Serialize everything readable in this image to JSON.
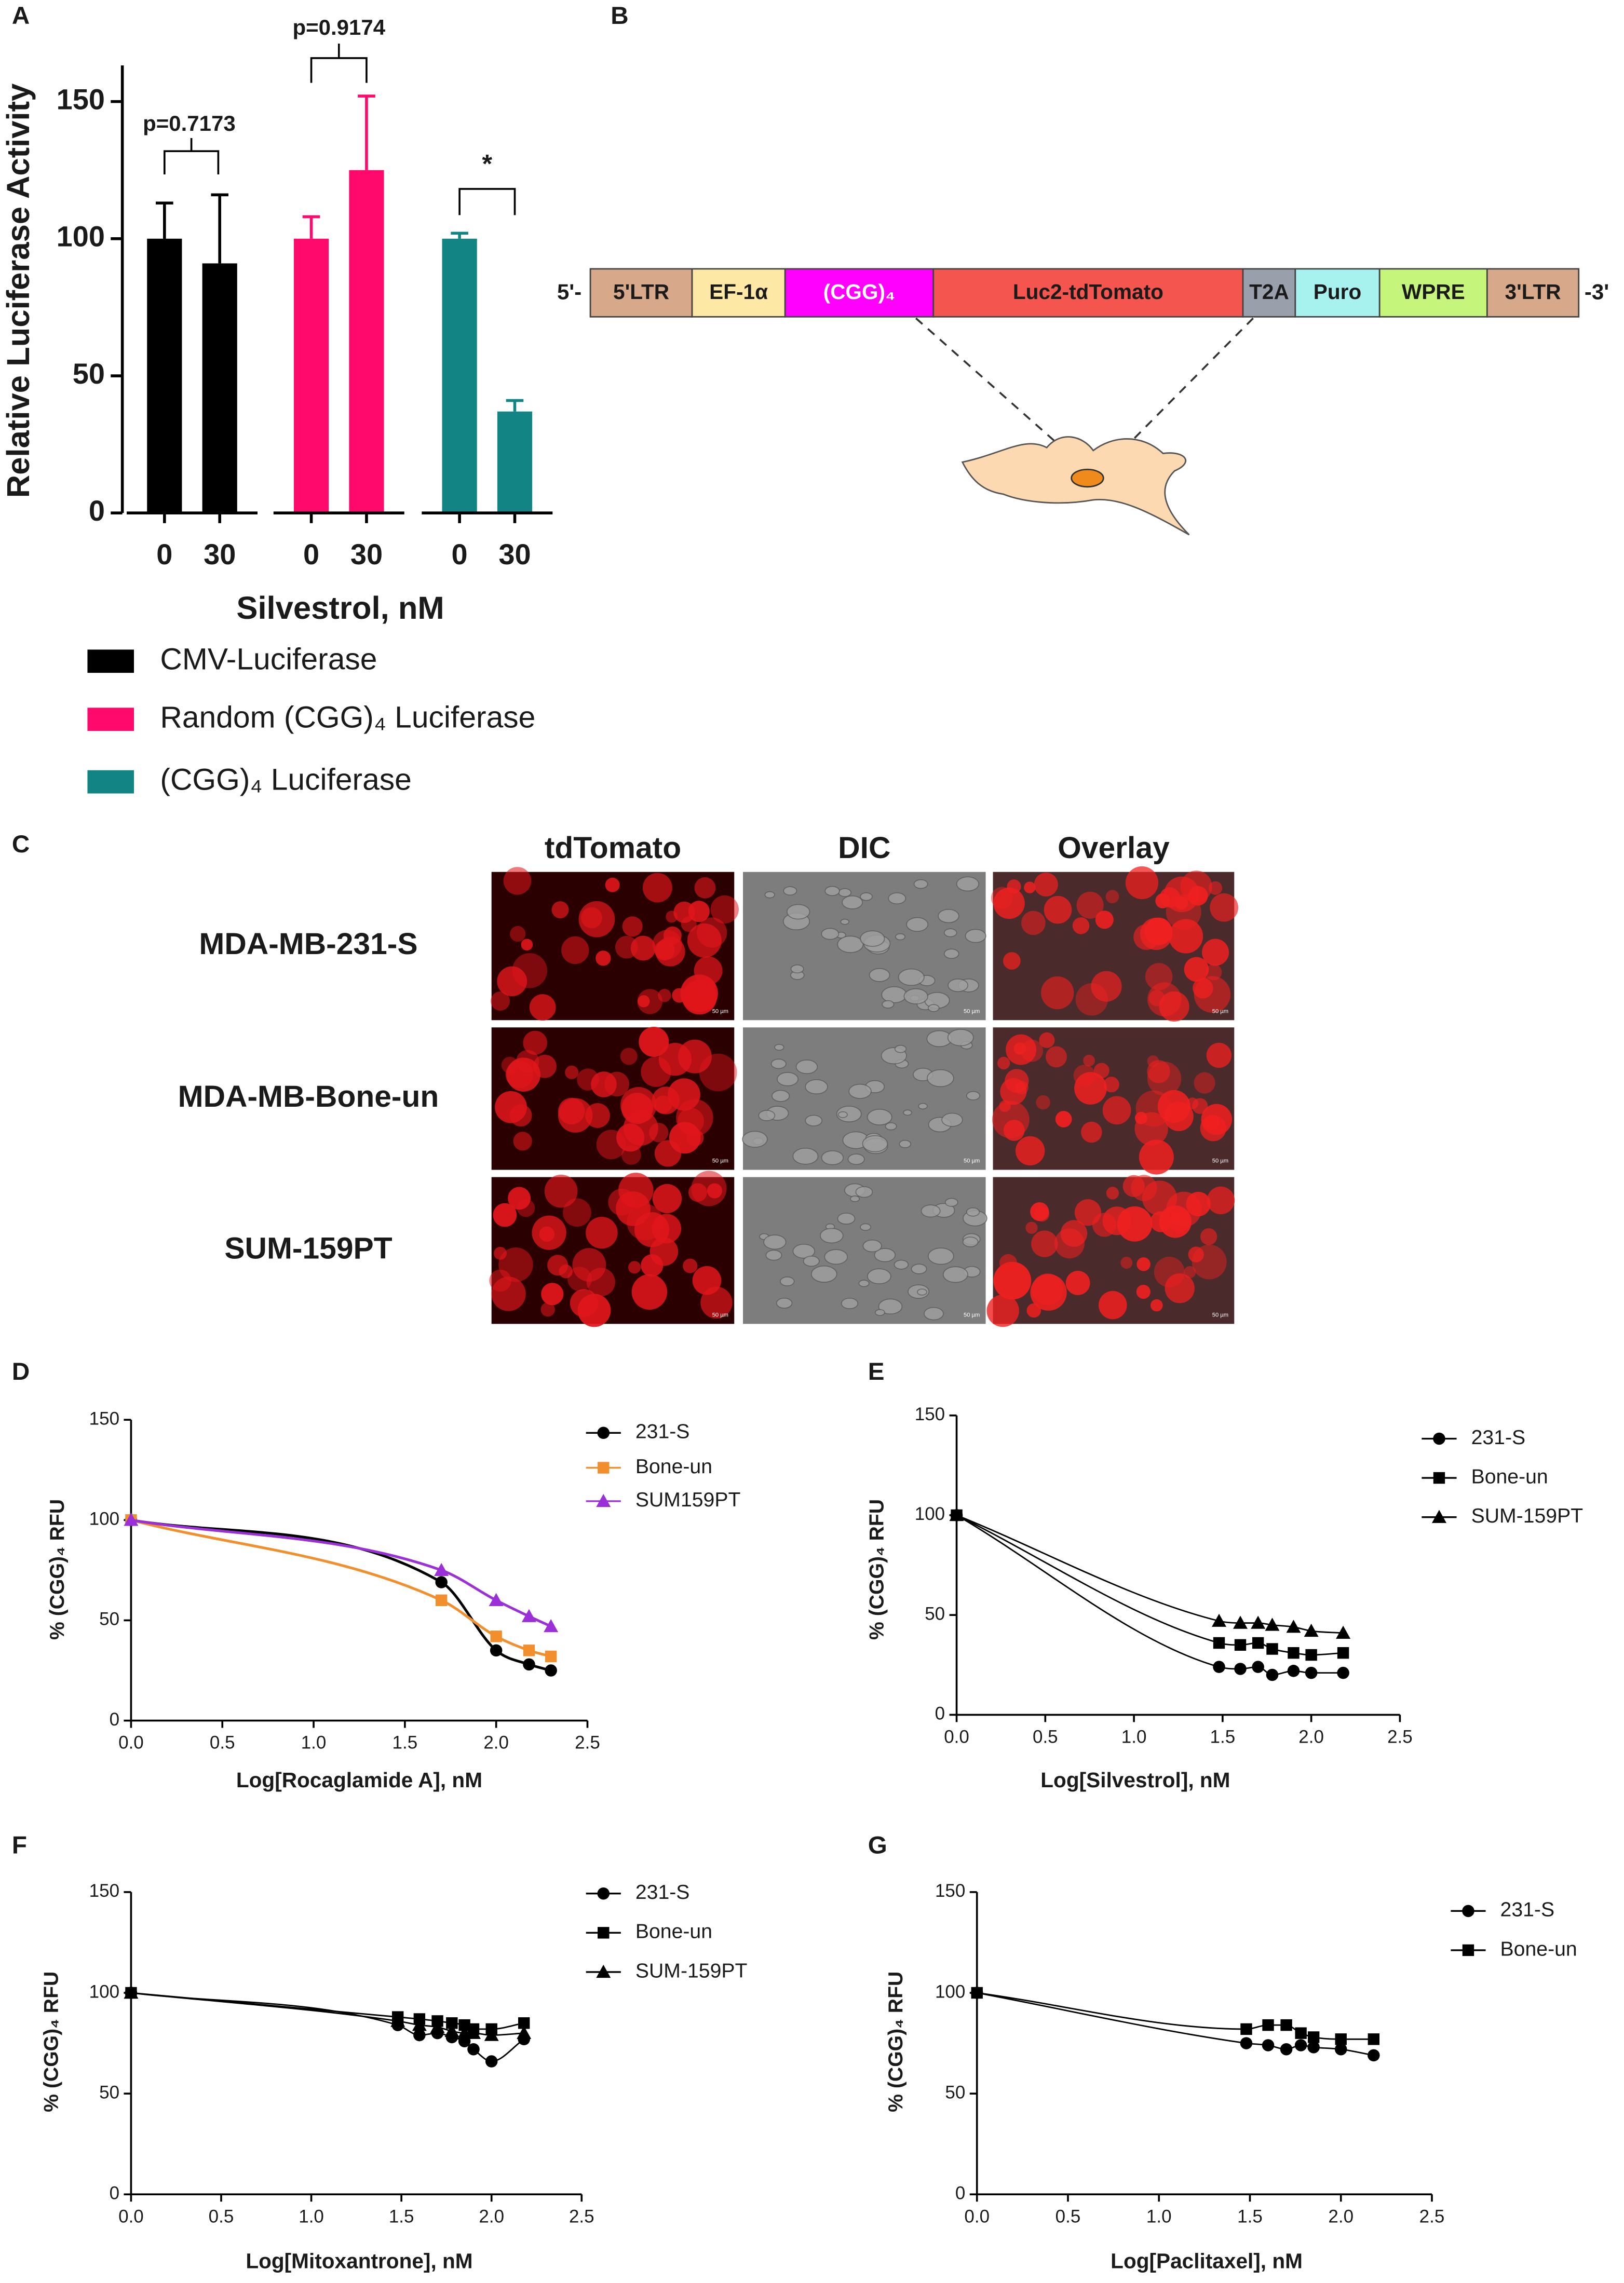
{
  "chart_data": [
    {
      "label": "A",
      "type": "bar",
      "ylabel": "Relative Luciferase Activity",
      "xlabel": "Silvestrol, nM",
      "categories": [
        "0",
        "30"
      ],
      "series": [
        {
          "name": "CMV-Luciferase",
          "color": "#000000",
          "values": [
            100,
            91
          ],
          "errors": [
            13,
            25
          ]
        },
        {
          "name": "Random (CGG)₄ Luciferase",
          "color": "#ff0a6c",
          "values": [
            100,
            125
          ],
          "errors": [
            8,
            27
          ]
        },
        {
          "name": "(CGG)₄ Luciferase",
          "color": "#138484",
          "values": [
            100,
            37
          ],
          "errors": [
            2,
            4
          ]
        }
      ],
      "ylim": [
        0,
        160
      ],
      "yticks": [
        0,
        50,
        100,
        150
      ],
      "annotations": [
        "p=0.7173",
        "p=0.9174",
        "*"
      ]
    },
    {
      "label": "D",
      "type": "line",
      "xlabel": "Log[Rocaglamide A], nM",
      "ylabel": "% (CGG)₄ RFU",
      "x": [
        0,
        1.7,
        2,
        2.18,
        2.3
      ],
      "series": [
        {
          "name": "231-S",
          "color": "#000000",
          "marker": "circle",
          "values": [
            100,
            69,
            35,
            28,
            25
          ]
        },
        {
          "name": "Bone-un",
          "color": "#f28e2b",
          "marker": "square",
          "values": [
            100,
            60,
            42,
            35,
            32
          ]
        },
        {
          "name": "SUM159PT",
          "color": "#9b30d9",
          "marker": "triangle",
          "values": [
            100,
            75,
            60,
            52,
            47
          ]
        }
      ],
      "xlim": [
        0,
        2.5
      ],
      "xticks": [
        {
          "value": 0,
          "label": "0.0"
        },
        0.5,
        {
          "value": 1,
          "label": "1.0"
        },
        1.5,
        {
          "value": 2,
          "label": "2.0"
        },
        2.5
      ],
      "ylim": [
        0,
        150
      ],
      "yticks": [
        0,
        50,
        100,
        150
      ],
      "legend": "right"
    },
    {
      "label": "E",
      "type": "line",
      "xlabel": "Log[Silvestrol], nM",
      "ylabel": "% (CGG)₄ RFU",
      "x": [
        0,
        1.48,
        1.6,
        1.7,
        1.78,
        1.9,
        2,
        2.18
      ],
      "series": [
        {
          "name": "231-S",
          "color": "#000000",
          "marker": "circle",
          "values": [
            100,
            24,
            23,
            24,
            20,
            22,
            21,
            21
          ]
        },
        {
          "name": "Bone-un",
          "color": "#000000",
          "marker": "square",
          "values": [
            100,
            36,
            35,
            36,
            33,
            31,
            30,
            31
          ]
        },
        {
          "name": "SUM-159PT",
          "color": "#000000",
          "marker": "triangle",
          "values": [
            100,
            47,
            46,
            46,
            45,
            44,
            42,
            41
          ]
        }
      ],
      "xlim": [
        0,
        2.5
      ],
      "xticks": [
        {
          "value": 0,
          "label": "0.0"
        },
        0.5,
        {
          "value": 1,
          "label": "1.0"
        },
        1.5,
        {
          "value": 2,
          "label": "2.0"
        },
        2.5
      ],
      "ylim": [
        0,
        150
      ],
      "yticks": [
        0,
        50,
        100,
        150
      ],
      "legend": "right"
    },
    {
      "label": "F",
      "type": "line",
      "xlabel": "Log[Mitoxantrone], nM",
      "ylabel": "% (CGG)₄ RFU",
      "x": [
        0,
        1.48,
        1.6,
        1.7,
        1.78,
        1.85,
        1.9,
        2,
        2.18
      ],
      "series": [
        {
          "name": "231-S",
          "color": "#000000",
          "marker": "circle",
          "values": [
            100,
            84,
            79,
            80,
            78,
            76,
            72,
            66,
            77
          ]
        },
        {
          "name": "Bone-un",
          "color": "#000000",
          "marker": "square",
          "values": [
            100,
            88,
            87,
            86,
            85,
            84,
            82,
            82,
            85
          ]
        },
        {
          "name": "SUM-159PT",
          "color": "#000000",
          "marker": "triangle",
          "values": [
            100,
            86,
            84,
            83,
            81,
            80,
            80,
            79,
            80
          ]
        }
      ],
      "xlim": [
        0,
        2.5
      ],
      "xticks": [
        {
          "value": 0,
          "label": "0.0"
        },
        0.5,
        {
          "value": 1,
          "label": "1.0"
        },
        1.5,
        {
          "value": 2,
          "label": "2.0"
        },
        2.5
      ],
      "ylim": [
        0,
        150
      ],
      "yticks": [
        0,
        50,
        100,
        150
      ],
      "legend": "right"
    },
    {
      "label": "G",
      "type": "line",
      "xlabel": "Log[Paclitaxel], nM",
      "ylabel": "% (CGG)₄ RFU",
      "x": [
        0,
        1.48,
        1.6,
        1.7,
        1.78,
        1.85,
        2,
        2.18
      ],
      "series": [
        {
          "name": "231-S",
          "color": "#000000",
          "marker": "circle",
          "values": [
            100,
            75,
            74,
            72,
            74,
            73,
            72,
            69
          ]
        },
        {
          "name": "Bone-un",
          "color": "#000000",
          "marker": "square",
          "values": [
            100,
            82,
            84,
            84,
            80,
            78,
            77,
            77
          ]
        }
      ],
      "xlim": [
        0,
        2.5
      ],
      "xticks": [
        {
          "value": 0,
          "label": "0.0"
        },
        0.5,
        {
          "value": 1,
          "label": "1.0"
        },
        1.5,
        {
          "value": 2,
          "label": "2.0"
        },
        2.5
      ],
      "ylim": [
        0,
        150
      ],
      "yticks": [
        0,
        50,
        100,
        150
      ],
      "legend": "right"
    }
  ],
  "construct": {
    "label": "B",
    "left_end": "5'-",
    "right_end": "-3'",
    "segments": [
      {
        "label": "5'LTR",
        "color": "#d7a98a"
      },
      {
        "label": "EF-1α",
        "color": "#fde8a6"
      },
      {
        "label": "(CGG)₄",
        "color": "#ff00ff",
        "text_color": "#ffffff"
      },
      {
        "label": "Luc2-tdTomato",
        "color": "#f4554e"
      },
      {
        "label": "T2A",
        "color": "#9aa0ab"
      },
      {
        "label": "Puro",
        "color": "#a7f2ee"
      },
      {
        "label": "WPRE",
        "color": "#c5f57a"
      },
      {
        "label": "3'LTR",
        "color": "#d7a98a"
      }
    ]
  },
  "imaging": {
    "label": "C",
    "columns": [
      "tdTomato",
      "DIC",
      "Overlay"
    ],
    "rows": [
      "MDA-MB-231-S",
      "MDA-MB-Bone-un",
      "SUM-159PT"
    ],
    "scale_bar": "50 µm"
  }
}
